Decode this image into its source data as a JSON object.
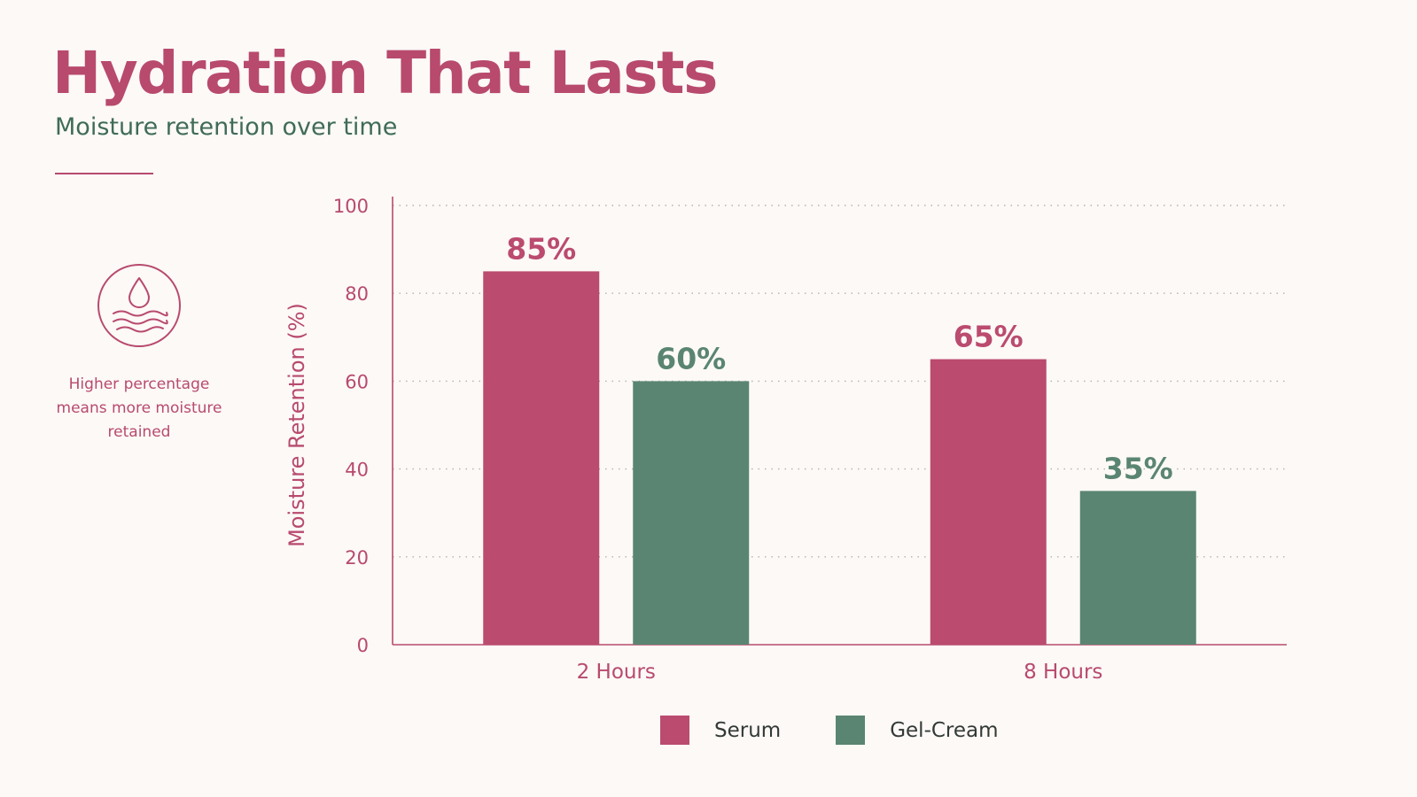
{
  "slide": {
    "title": "Hydration That Lasts",
    "subtitle": "Moisture retention over time",
    "side_note": "Higher percentage means more moisture retained",
    "side_icon": "water-drop-waves-icon"
  },
  "colors": {
    "serum": "#bb4b6f",
    "gel_cream": "#5a8572",
    "accent": "#b84a6e",
    "subtitle": "#3f6b57",
    "grid": "#b8b0ad",
    "axis": "#b84a6e",
    "background": "#fcf9f7"
  },
  "chart_data": {
    "type": "bar",
    "title": "",
    "xlabel": "",
    "ylabel": "Moisture Retention (%)",
    "categories": [
      "2 Hours",
      "8 Hours"
    ],
    "series": [
      {
        "name": "Serum",
        "values": [
          85,
          65
        ],
        "labels": [
          "85%",
          "65%"
        ]
      },
      {
        "name": "Gel-Cream",
        "values": [
          60,
          35
        ],
        "labels": [
          "60%",
          "35%"
        ]
      }
    ],
    "ylim": [
      0,
      100
    ],
    "yticks": [
      0,
      20,
      40,
      60,
      80,
      100
    ],
    "grid": true,
    "grid_style": "dotted",
    "legend": "bottom-center"
  }
}
